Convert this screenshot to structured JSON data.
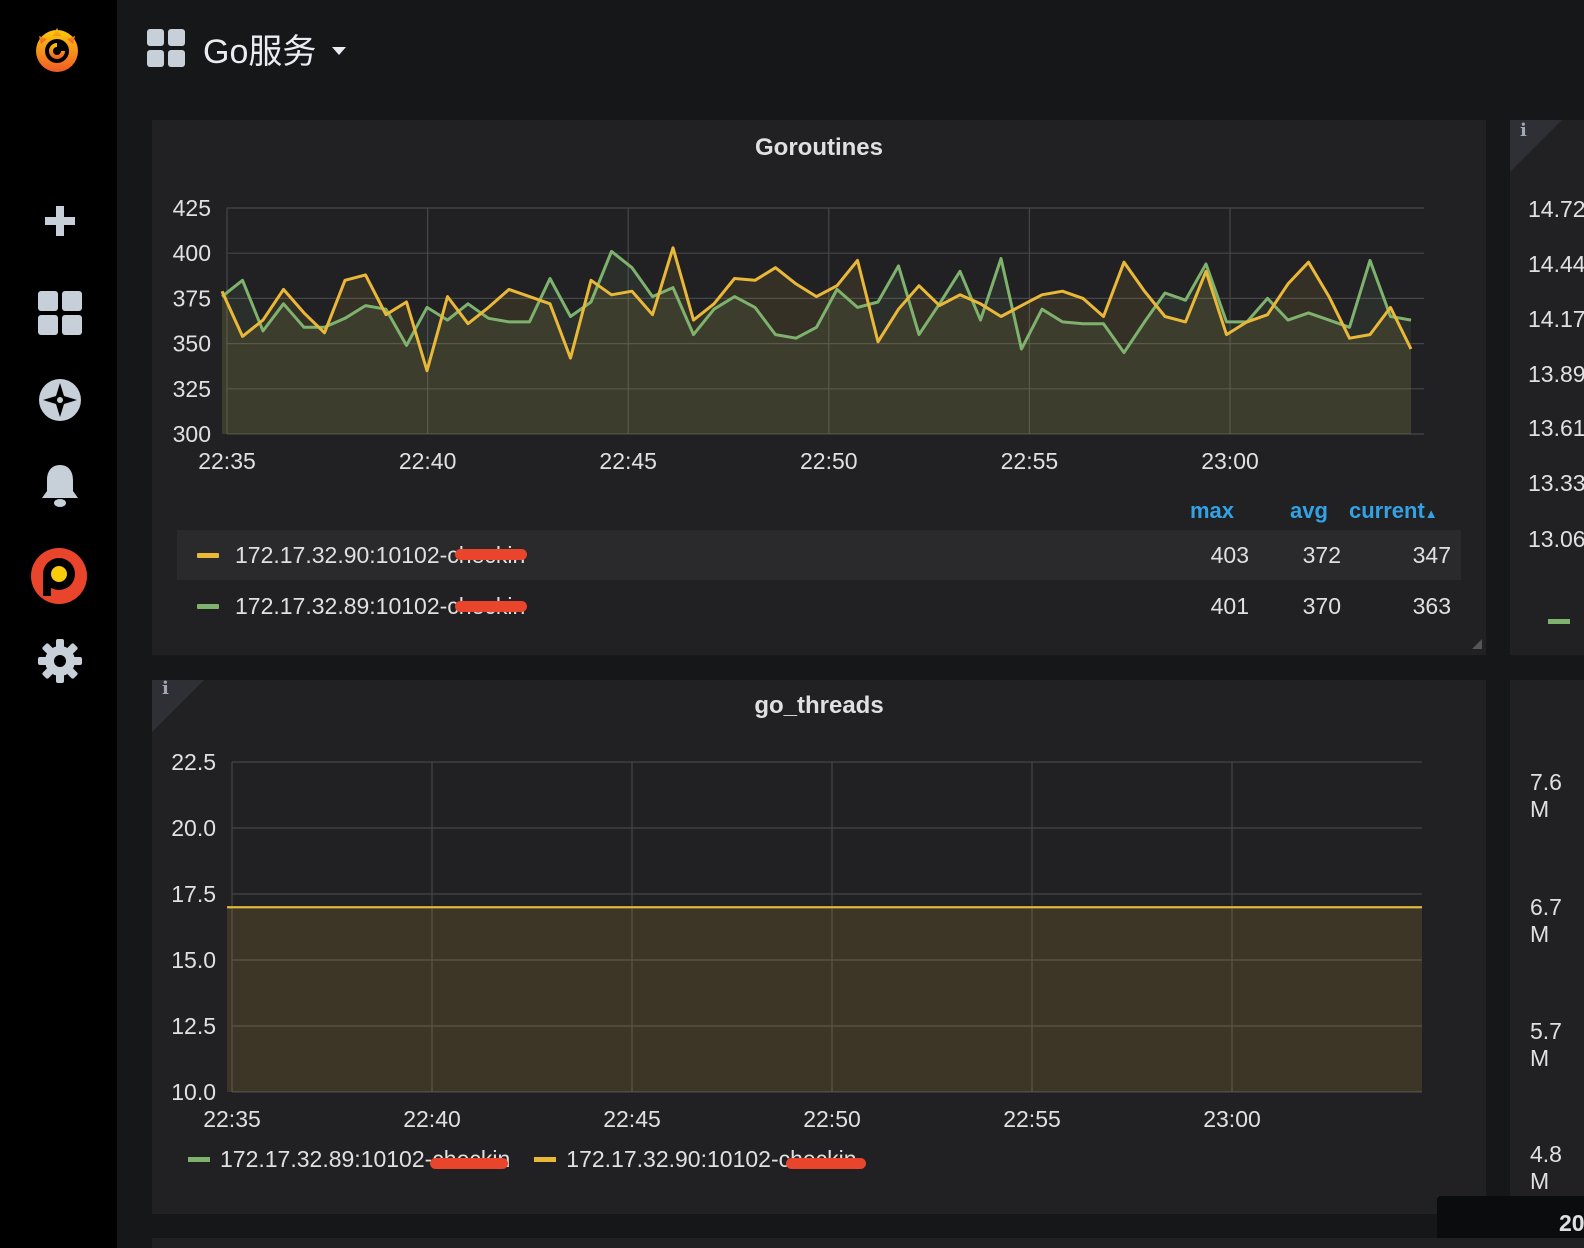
{
  "header": {
    "dashboard_title": "Go服务"
  },
  "sidebar": {
    "items": [
      "grafana-logo",
      "add",
      "dashboards",
      "explore",
      "alerting",
      "plugin",
      "configuration"
    ]
  },
  "colors": {
    "yellow": "#eab839",
    "green": "#7eb26d",
    "accent": "#33a2e5",
    "fill": "#3a3830"
  },
  "panels": {
    "goroutines": {
      "title": "Goroutines",
      "legend": {
        "headers": {
          "max": "max",
          "avg": "avg",
          "current": "current"
        },
        "rows": [
          {
            "name": "172.17.32.90:10102-checkin",
            "max": "403",
            "avg": "372",
            "current": "347",
            "color": "#eab839"
          },
          {
            "name": "172.17.32.89:10102-checkin",
            "max": "401",
            "avg": "370",
            "current": "363",
            "color": "#7eb26d"
          }
        ]
      }
    },
    "go_threads": {
      "title": "go_threads",
      "legend": [
        {
          "name": "172.17.32.89:10102-checkin",
          "color": "#7eb26d"
        },
        {
          "name": "172.17.32.90:10102-checkin",
          "color": "#eab839"
        }
      ]
    },
    "right_top": {
      "yticks": [
        "14.72",
        "14.44",
        "14.17",
        "13.89",
        "13.61",
        "13.33",
        "13.06"
      ]
    },
    "right_bottom": {
      "yticks": [
        "7.6 M",
        "6.7 M",
        "5.7 M",
        "4.8 M"
      ],
      "corner_text": "20"
    }
  },
  "chart_data": [
    {
      "type": "line",
      "title": "Goroutines",
      "xlabel": "",
      "ylabel": "",
      "ylim": [
        300,
        425
      ],
      "yticks": [
        300,
        325,
        350,
        375,
        400,
        425
      ],
      "xticks": [
        "22:35",
        "22:40",
        "22:45",
        "22:50",
        "22:55",
        "23:00"
      ],
      "x_start": "22:35",
      "x_end": "23:04.5",
      "grid": true,
      "series": [
        {
          "name": "172.17.32.90:10102-checkin",
          "color": "#eab839",
          "values": [
            379,
            354,
            363,
            380,
            367,
            356,
            385,
            388,
            366,
            373,
            335,
            376,
            361,
            370,
            380,
            376,
            372,
            342,
            385,
            377,
            379,
            366,
            403,
            363,
            372,
            386,
            385,
            392,
            383,
            376,
            382,
            396,
            351,
            369,
            382,
            371,
            377,
            372,
            365,
            371,
            377,
            379,
            375,
            365,
            395,
            379,
            365,
            362,
            390,
            355,
            362,
            366,
            383,
            395,
            376,
            353,
            355,
            370,
            347
          ]
        },
        {
          "name": "172.17.32.89:10102-checkin",
          "color": "#7eb26d",
          "values": [
            376,
            385,
            357,
            372,
            359,
            359,
            364,
            371,
            369,
            349,
            370,
            363,
            372,
            364,
            362,
            362,
            386,
            365,
            373,
            401,
            392,
            376,
            381,
            355,
            369,
            376,
            370,
            355,
            353,
            359,
            380,
            370,
            373,
            393,
            355,
            372,
            390,
            363,
            397,
            347,
            369,
            362,
            361,
            361,
            345,
            362,
            378,
            374,
            394,
            362,
            362,
            375,
            363,
            367,
            363,
            359,
            396,
            365,
            363
          ]
        }
      ]
    },
    {
      "type": "area",
      "title": "go_threads",
      "xlabel": "",
      "ylabel": "",
      "ylim": [
        10,
        22.5
      ],
      "yticks": [
        "10.0",
        "12.5",
        "15.0",
        "17.5",
        "20.0",
        "22.5"
      ],
      "xticks": [
        "22:35",
        "22:40",
        "22:45",
        "22:50",
        "22:55",
        "23:00"
      ],
      "grid": true,
      "series": [
        {
          "name": "172.17.32.89:10102-checkin",
          "color": "#7eb26d",
          "values": [
            17,
            17
          ]
        },
        {
          "name": "172.17.32.90:10102-checkin",
          "color": "#eab839",
          "values": [
            17,
            17
          ]
        }
      ]
    }
  ]
}
